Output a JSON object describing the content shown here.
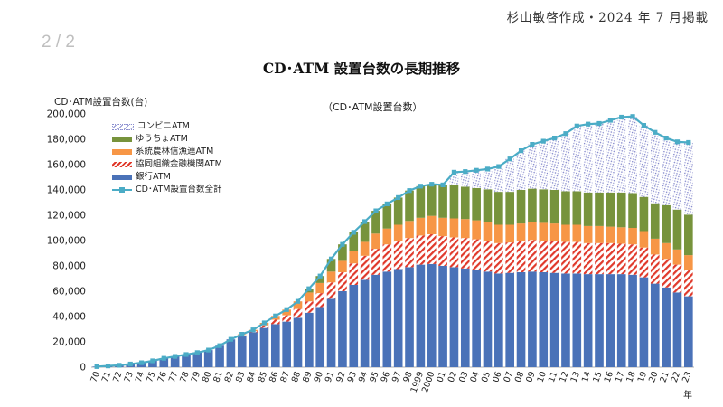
{
  "header": {
    "credit": "杉山敏啓作成・2024 年 7 月掲載",
    "page": "2 / 2"
  },
  "chart_data": {
    "type": "bar",
    "title": "CD･ATM 設置台数の長期推移",
    "subtitle": "（CD･ATM設置台数）",
    "ylabel": "CD･ATM設置台数(台)",
    "xlabel": "年",
    "ylim": [
      0,
      200000
    ],
    "yticks": [
      0,
      20000,
      40000,
      60000,
      80000,
      100000,
      120000,
      140000,
      160000,
      180000,
      200000
    ],
    "ytick_labels": [
      "0",
      "20,000",
      "40,000",
      "60,000",
      "80,000",
      "100,000",
      "120,000",
      "140,000",
      "160,000",
      "180,000",
      "200,000"
    ],
    "grid": false,
    "legend_position": "top-left",
    "categories": [
      "70",
      "71",
      "72",
      "73",
      "74",
      "75",
      "76",
      "77",
      "78",
      "79",
      "80",
      "81",
      "82",
      "83",
      "84",
      "85",
      "86",
      "87",
      "88",
      "89",
      "90",
      "91",
      "92",
      "93",
      "94",
      "95",
      "96",
      "97",
      "98",
      "1999",
      "2000",
      "01",
      "02",
      "03",
      "04",
      "05",
      "06",
      "07",
      "08",
      "09",
      "10",
      "11",
      "12",
      "13",
      "14",
      "15",
      "16",
      "17",
      "18",
      "19",
      "20",
      "21",
      "22",
      "23"
    ],
    "series": [
      {
        "name": "銀行ATM",
        "color": "#4a72b8",
        "pattern": "solid",
        "values": [
          500,
          1000,
          1500,
          2500,
          3500,
          5000,
          7000,
          8500,
          10000,
          11500,
          13500,
          17000,
          22000,
          25000,
          27500,
          31000,
          34000,
          36000,
          39000,
          43000,
          47500,
          54000,
          60000,
          65000,
          69000,
          73000,
          75500,
          77500,
          79000,
          81000,
          81500,
          80000,
          79000,
          78000,
          77000,
          75500,
          74000,
          74500,
          75000,
          75500,
          75000,
          74500,
          74000,
          74000,
          73500,
          73500,
          73500,
          73500,
          73000,
          71000,
          66000,
          63000,
          59000,
          56000
        ]
      },
      {
        "name": "協同組織金融機関ATM",
        "color": "#e0392b",
        "pattern": "hatched",
        "values": [
          0,
          0,
          0,
          0,
          0,
          0,
          0,
          0,
          0,
          0,
          0,
          0,
          0,
          500,
          1000,
          2000,
          3500,
          5000,
          7000,
          9000,
          11000,
          13000,
          15000,
          17000,
          19000,
          20500,
          21500,
          22000,
          23000,
          23000,
          23500,
          23500,
          23500,
          24000,
          24000,
          24000,
          24000,
          24000,
          24500,
          25000,
          25000,
          25000,
          25000,
          25000,
          24500,
          24500,
          24500,
          24000,
          24000,
          23500,
          23000,
          22500,
          22000,
          21000
        ]
      },
      {
        "name": "系統農林信漁連ATM",
        "color": "#f79646",
        "pattern": "solid",
        "values": [
          0,
          0,
          0,
          0,
          0,
          0,
          0,
          0,
          0,
          0,
          0,
          0,
          0,
          500,
          1000,
          2000,
          3000,
          4500,
          6000,
          7000,
          8000,
          8500,
          9000,
          10000,
          11000,
          12000,
          12500,
          13000,
          13500,
          14000,
          14500,
          14500,
          15000,
          15000,
          15000,
          15000,
          14500,
          14000,
          14000,
          14000,
          14000,
          14000,
          13500,
          13500,
          13500,
          13500,
          13000,
          13000,
          13000,
          13000,
          12500,
          12500,
          12000,
          11500
        ]
      },
      {
        "name": "ゆうちょATM",
        "color": "#77933c",
        "pattern": "solid",
        "values": [
          0,
          0,
          0,
          0,
          0,
          0,
          0,
          0,
          0,
          0,
          0,
          0,
          0,
          0,
          0,
          0,
          0,
          0,
          0,
          3000,
          5500,
          10000,
          13000,
          14500,
          16000,
          18000,
          19500,
          21500,
          24000,
          25000,
          25000,
          26000,
          26500,
          25500,
          25500,
          26000,
          26000,
          26000,
          26500,
          26500,
          26500,
          26500,
          26500,
          26500,
          26500,
          26500,
          27000,
          27500,
          27500,
          27000,
          28000,
          30000,
          31500,
          32000
        ]
      },
      {
        "name": "コンビニATM",
        "color": "#8b8fcf",
        "pattern": "dotted",
        "values": [
          0,
          0,
          0,
          0,
          0,
          0,
          0,
          0,
          0,
          0,
          0,
          0,
          0,
          0,
          0,
          0,
          0,
          0,
          0,
          0,
          0,
          0,
          0,
          0,
          0,
          0,
          0,
          0,
          0,
          0,
          0,
          0,
          10000,
          12000,
          14000,
          16000,
          20000,
          26000,
          31000,
          35000,
          38000,
          41000,
          45500,
          51500,
          54000,
          54500,
          57500,
          59500,
          60500,
          56500,
          56000,
          53000,
          53500,
          57000
        ]
      },
      {
        "name": "CD･ATM設置台数全計",
        "color": "#4bacc6",
        "type": "line",
        "values": [
          500,
          1000,
          1500,
          2500,
          3500,
          5000,
          7000,
          8500,
          10000,
          11500,
          13500,
          17000,
          22000,
          26000,
          29500,
          35000,
          40500,
          45500,
          52000,
          62000,
          72000,
          85500,
          97000,
          106500,
          115000,
          123500,
          129000,
          134000,
          139500,
          143000,
          144500,
          144000,
          154000,
          154500,
          155500,
          156500,
          158500,
          164500,
          171000,
          176000,
          178500,
          181000,
          184500,
          190500,
          192000,
          192500,
          195000,
          197500,
          198000,
          191000,
          185500,
          181000,
          178000,
          177500
        ]
      }
    ]
  }
}
